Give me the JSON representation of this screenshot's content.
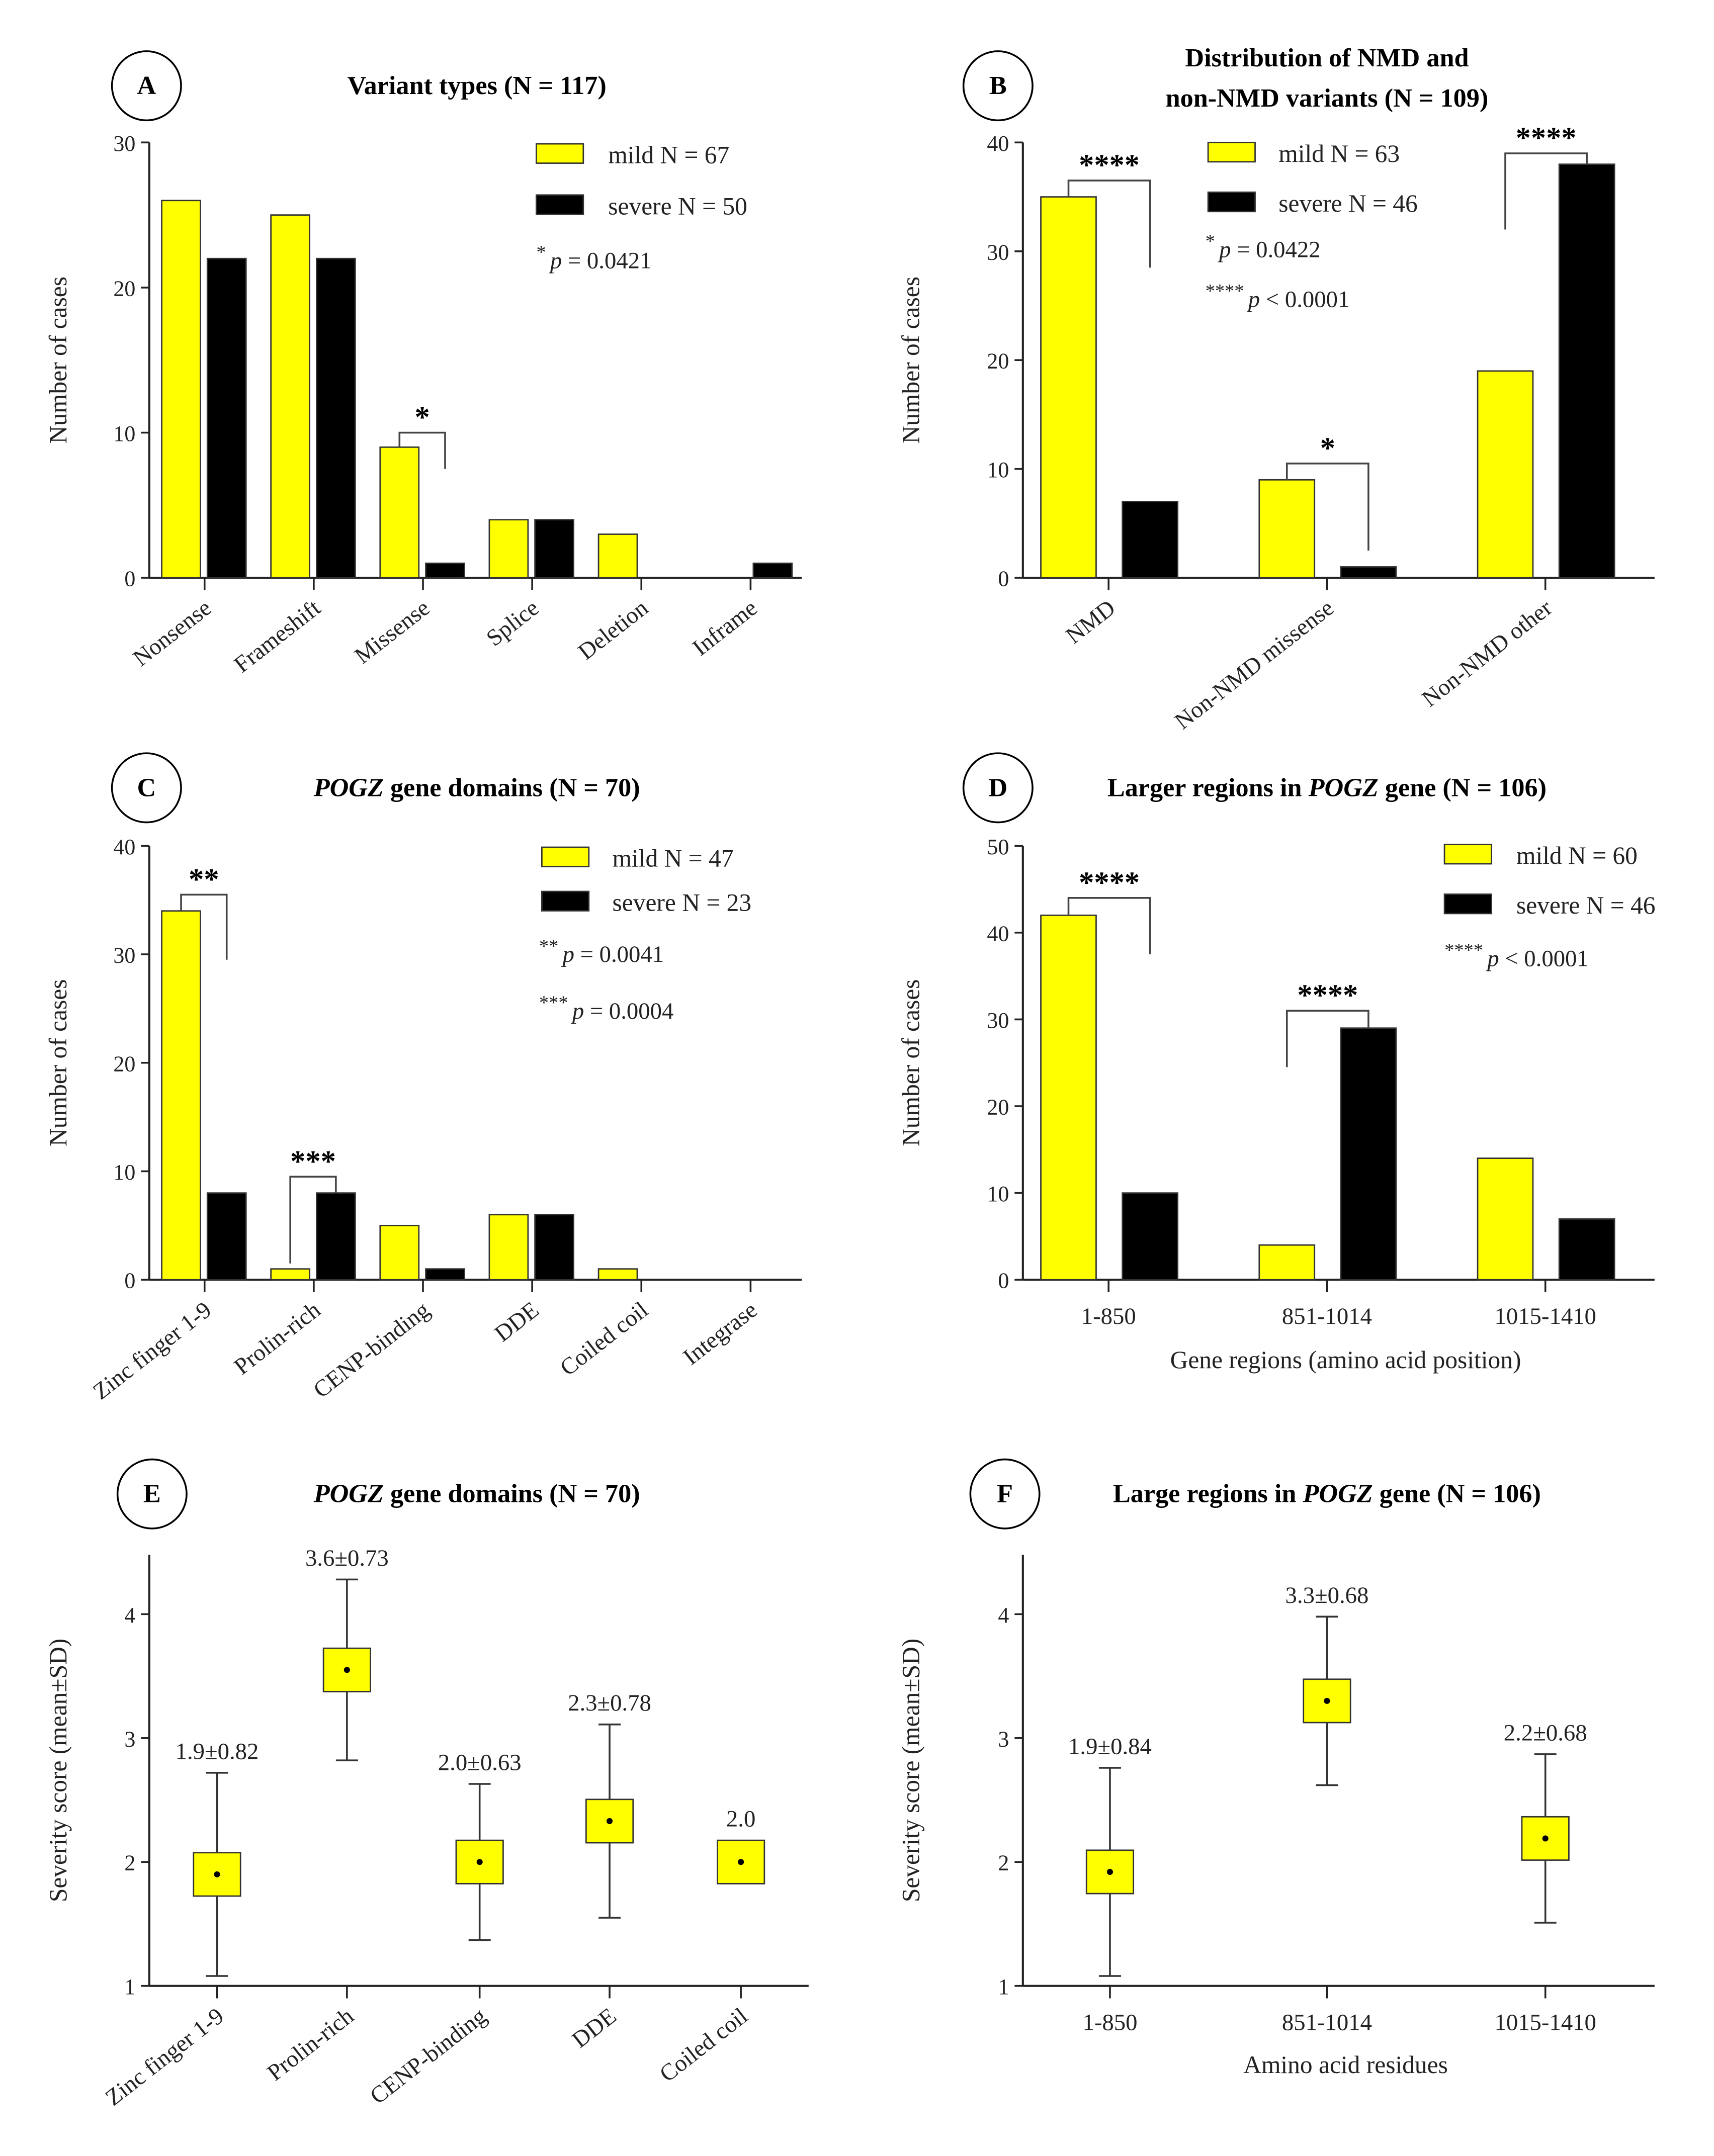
{
  "colors": {
    "mild": "#ffff00",
    "severe": "#000000",
    "axis": "#222222"
  },
  "chart_data": [
    {
      "panel": "A",
      "type": "bar",
      "title": [
        {
          "text": "Variant types (N = 117)",
          "italic": false
        }
      ],
      "ylabel": "Number of cases",
      "xlabel": "",
      "ylim": [
        0,
        30
      ],
      "yticks": [
        0,
        10,
        20,
        30
      ],
      "categories": [
        "Nonsense",
        "Frameshift",
        "Missense",
        "Splice",
        "Deletion",
        "Inframe"
      ],
      "series": [
        {
          "name": "mild N = 67",
          "key": "mild",
          "values": [
            26,
            25,
            9,
            4,
            3,
            0
          ]
        },
        {
          "name": "severe N = 50",
          "key": "severe",
          "values": [
            22,
            22,
            1,
            4,
            0,
            1
          ]
        }
      ],
      "pvalues": [
        {
          "stars": "*",
          "text": "p = 0.0421"
        }
      ],
      "brackets": [
        {
          "category": 2,
          "left_from": 9,
          "top": 10,
          "right_to": 7.5,
          "stars": "*"
        }
      ],
      "legend": "top-right"
    },
    {
      "panel": "B",
      "type": "bar",
      "title": [
        {
          "text": "Distribution of NMD and",
          "italic": false
        },
        {
          "text": "non-NMD variants (N = 109)",
          "italic": false,
          "newline": true
        }
      ],
      "ylabel": "Number of cases",
      "xlabel": "",
      "ylim": [
        0,
        40
      ],
      "yticks": [
        0,
        10,
        20,
        30,
        40
      ],
      "categories": [
        "NMD",
        "Non-NMD missense",
        "Non-NMD other"
      ],
      "series": [
        {
          "name": "mild N = 63",
          "key": "mild",
          "values": [
            35,
            9,
            19
          ]
        },
        {
          "name": "severe N = 46",
          "key": "severe",
          "values": [
            7,
            1,
            38
          ]
        }
      ],
      "pvalues": [
        {
          "stars": "*",
          "text": "p = 0.0422"
        },
        {
          "stars": "****",
          "text": "p < 0.0001"
        }
      ],
      "brackets": [
        {
          "category": 0,
          "left_from": 35,
          "top": 36.5,
          "right_to": 28.5,
          "stars": "****"
        },
        {
          "category": 1,
          "left_from": 9,
          "top": 10.5,
          "right_to": 2.5,
          "stars": "*"
        },
        {
          "category": 2,
          "left_from": 32,
          "top": 39,
          "right_to": 38,
          "stars": "****"
        }
      ],
      "legend": "top-center"
    },
    {
      "panel": "C",
      "type": "bar",
      "title": [
        {
          "text": "POGZ",
          "italic": true
        },
        {
          "text": " gene domains (N = 70)",
          "italic": false
        }
      ],
      "ylabel": "Number of cases",
      "xlabel": "",
      "ylim": [
        0,
        40
      ],
      "yticks": [
        0,
        10,
        20,
        30,
        40
      ],
      "categories": [
        "Zinc finger 1-9",
        "Prolin-rich",
        "CENP-binding",
        "DDE",
        "Coiled coil",
        "Integrase"
      ],
      "series": [
        {
          "name": "mild N = 47",
          "key": "mild",
          "values": [
            34,
            1,
            5,
            6,
            1,
            0
          ]
        },
        {
          "name": "severe N = 23",
          "key": "severe",
          "values": [
            8,
            8,
            1,
            6,
            0,
            0
          ]
        }
      ],
      "pvalues": [
        {
          "stars": "**",
          "text": "p = 0.0041"
        },
        {
          "stars": "***",
          "text": "p = 0.0004"
        }
      ],
      "brackets": [
        {
          "category": 0,
          "left_from": 34,
          "top": 35.5,
          "right_to": 29.5,
          "stars": "**"
        },
        {
          "category": 1,
          "left_from": 1.5,
          "top": 9.5,
          "right_to": 8,
          "stars": "***"
        }
      ],
      "legend": "top-right"
    },
    {
      "panel": "D",
      "type": "bar",
      "title": [
        {
          "text": "Larger regions in ",
          "italic": false
        },
        {
          "text": "POGZ",
          "italic": true
        },
        {
          "text": " gene (N = 106)",
          "italic": false
        }
      ],
      "ylabel": "Number of cases",
      "xlabel": "Gene regions (amino acid position)",
      "ylim": [
        0,
        50
      ],
      "yticks": [
        0,
        10,
        20,
        30,
        40,
        50
      ],
      "categories": [
        "1-850",
        "851-1014",
        "1015-1410"
      ],
      "series": [
        {
          "name": "mild N = 60",
          "key": "mild",
          "values": [
            42,
            4,
            14
          ]
        },
        {
          "name": "severe N = 46",
          "key": "severe",
          "values": [
            10,
            29,
            7
          ]
        }
      ],
      "pvalues": [
        {
          "stars": "****",
          "text": "p < 0.0001"
        }
      ],
      "brackets": [
        {
          "category": 0,
          "left_from": 42,
          "top": 44,
          "right_to": 37.5,
          "stars": "****"
        },
        {
          "category": 1,
          "left_from": 24.5,
          "top": 31,
          "right_to": 29,
          "stars": "****"
        }
      ],
      "legend": "top-right"
    },
    {
      "panel": "E",
      "type": "scatter",
      "title": [
        {
          "text": "POGZ",
          "italic": true
        },
        {
          "text": " gene domains (N = 70)",
          "italic": false
        }
      ],
      "ylabel": "Severity score (mean±SD)",
      "xlabel": "",
      "ylim": [
        1,
        4.5
      ],
      "yticks": [
        1,
        2,
        3,
        4
      ],
      "categories": [
        "Zinc finger 1-9",
        "Prolin-rich",
        "CENP-binding",
        "DDE",
        "Coiled coil"
      ],
      "mean": [
        1.9,
        3.55,
        2.0,
        2.33,
        2.0
      ],
      "sd": [
        0.82,
        0.73,
        0.63,
        0.78,
        0
      ],
      "labels": [
        "1.9±0.82",
        "3.6±0.73",
        "2.0±0.63",
        "2.3±0.78",
        "2.0"
      ]
    },
    {
      "panel": "F",
      "type": "scatter",
      "title": [
        {
          "text": "Large regions in ",
          "italic": false
        },
        {
          "text": "POGZ",
          "italic": true
        },
        {
          "text": " gene (N = 106)",
          "italic": false
        }
      ],
      "ylabel": "Severity score (mean±SD)",
      "xlabel": "Amino acid residues",
      "ylim": [
        1,
        4.5
      ],
      "yticks": [
        1,
        2,
        3,
        4
      ],
      "categories": [
        "1-850",
        "851-1014",
        "1015-1410"
      ],
      "mean": [
        1.92,
        3.3,
        2.19
      ],
      "sd": [
        0.84,
        0.68,
        0.68
      ],
      "labels": [
        "1.9±0.84",
        "3.3±0.68",
        "2.2±0.68"
      ]
    }
  ]
}
